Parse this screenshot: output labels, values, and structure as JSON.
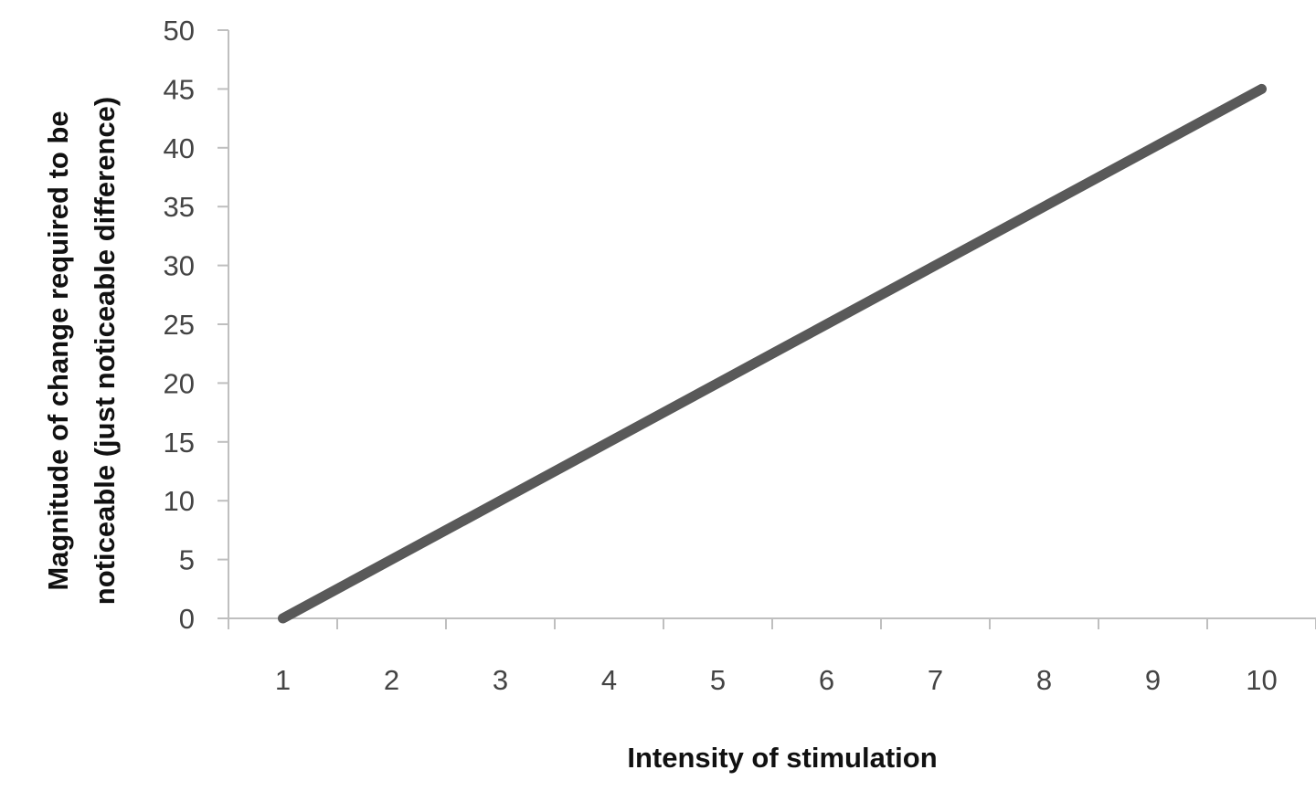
{
  "chart_data": {
    "type": "line",
    "x": [
      1,
      2,
      3,
      4,
      5,
      6,
      7,
      8,
      9,
      10
    ],
    "categories": [
      "1",
      "2",
      "3",
      "4",
      "5",
      "6",
      "7",
      "8",
      "9",
      "10"
    ],
    "series": [
      {
        "values": [
          0,
          5,
          10,
          15,
          20,
          25,
          30,
          35,
          40,
          45
        ],
        "color": "#595959"
      }
    ],
    "xlabel": "Intensity of stimulation",
    "ylabel_line1": "Magnitude of change required to be",
    "ylabel_line2": "noticeable (just noticeable difference)",
    "ylim": [
      0,
      50
    ],
    "yticks": [
      "0",
      "5",
      "10",
      "15",
      "20",
      "25",
      "30",
      "35",
      "40",
      "45",
      "50"
    ],
    "grid": false,
    "legend": "none",
    "axis_color": "#bfbfbf"
  }
}
